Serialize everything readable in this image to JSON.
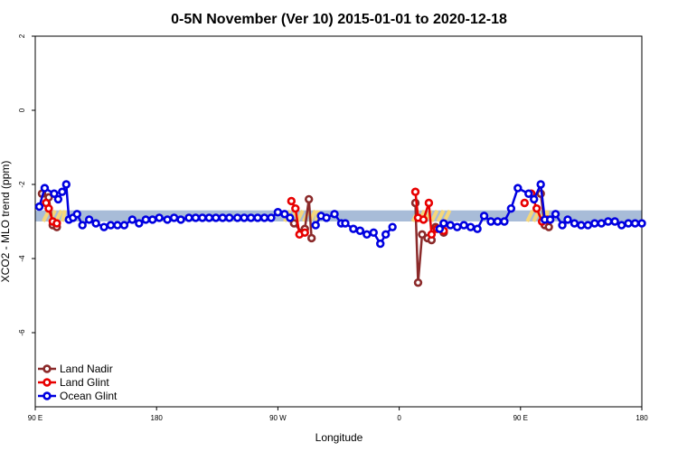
{
  "chart_data": {
    "type": "line",
    "title": "0-5N November (Ver 10)   2015-01-01 to 2020-12-18",
    "xlabel": "Longitude",
    "ylabel": "XCO2 - MLO trend (ppm)",
    "xlim": [
      90,
      540
    ],
    "ylim": [
      -8,
      2
    ],
    "x_ticks": [
      {
        "value": 90,
        "label": "90 E"
      },
      {
        "value": 180,
        "label": "180"
      },
      {
        "value": 270,
        "label": "90 W"
      },
      {
        "value": 360,
        "label": "0"
      },
      {
        "value": 450,
        "label": "90 E"
      },
      {
        "value": 540,
        "label": "180"
      }
    ],
    "y_ticks": [
      {
        "value": 2,
        "label": "2"
      },
      {
        "value": 0,
        "label": "0"
      },
      {
        "value": -2,
        "label": "-2"
      },
      {
        "value": -4,
        "label": "-4"
      },
      {
        "value": -6,
        "label": "-6"
      }
    ],
    "band": {
      "ymin": -3.0,
      "ymax": -2.7,
      "color": "#a8bcd8"
    },
    "yellow_segments": [
      {
        "x0": 96,
        "x1": 112
      },
      {
        "x0": 275,
        "x1": 300
      },
      {
        "x0": 370,
        "x1": 398
      },
      {
        "x0": 455,
        "x1": 470
      }
    ],
    "legend_position": "bottom-left",
    "series": [
      {
        "name": "Land Nadir",
        "color": "#8b2a2a",
        "segments": [
          [
            [
              95,
              -2.25
            ],
            [
              100,
              -2.35
            ],
            [
              103,
              -3.1
            ],
            [
              106,
              -3.15
            ]
          ],
          [
            [
              282,
              -3.05
            ],
            [
              288,
              -3.3
            ],
            [
              290,
              -3.2
            ],
            [
              293,
              -2.4
            ],
            [
              295,
              -3.45
            ]
          ],
          [
            [
              372,
              -2.5
            ],
            [
              374,
              -4.65
            ],
            [
              377,
              -3.35
            ],
            [
              381,
              -3.45
            ],
            [
              384,
              -3.5
            ],
            [
              387,
              -3.15
            ],
            [
              393,
              -3.3
            ]
          ],
          [
            [
              465,
              -2.25
            ],
            [
              468,
              -3.1
            ],
            [
              471,
              -3.15
            ]
          ]
        ]
      },
      {
        "name": "Land Glint",
        "color": "#e80000",
        "segments": [
          [
            [
              98,
              -2.5
            ]
          ],
          [
            [
              100,
              -2.65
            ],
            [
              103,
              -3.0
            ],
            [
              106,
              -3.05
            ]
          ],
          [
            [
              280,
              -2.45
            ],
            [
              283,
              -2.65
            ],
            [
              286,
              -3.35
            ],
            [
              290,
              -3.3
            ]
          ],
          [
            [
              372,
              -2.2
            ],
            [
              374,
              -2.9
            ],
            [
              378,
              -2.95
            ],
            [
              382,
              -2.5
            ],
            [
              384,
              -3.35
            ],
            [
              388,
              -3.2
            ],
            [
              393,
              -3.25
            ]
          ],
          [
            [
              453,
              -2.5
            ]
          ],
          [
            [
              458,
              -2.25
            ],
            [
              462,
              -2.65
            ],
            [
              466,
              -3.0
            ],
            [
              470,
              -2.95
            ]
          ]
        ]
      },
      {
        "name": "Ocean Glint",
        "color": "#0000e0",
        "segments": [
          [
            [
              93,
              -2.6
            ],
            [
              97,
              -2.1
            ],
            [
              104,
              -2.25
            ],
            [
              107,
              -2.4
            ],
            [
              110,
              -2.2
            ],
            [
              113,
              -2.0
            ],
            [
              115,
              -2.95
            ],
            [
              118,
              -2.9
            ],
            [
              121,
              -2.8
            ],
            [
              125,
              -3.1
            ],
            [
              130,
              -2.95
            ],
            [
              135,
              -3.05
            ],
            [
              141,
              -3.15
            ],
            [
              146,
              -3.1
            ],
            [
              151,
              -3.1
            ],
            [
              156,
              -3.1
            ],
            [
              162,
              -2.95
            ],
            [
              167,
              -3.05
            ],
            [
              172,
              -2.95
            ],
            [
              177,
              -2.95
            ],
            [
              182,
              -2.9
            ],
            [
              188,
              -2.95
            ],
            [
              193,
              -2.9
            ],
            [
              198,
              -2.95
            ],
            [
              204,
              -2.9
            ],
            [
              209,
              -2.9
            ],
            [
              214,
              -2.9
            ],
            [
              219,
              -2.9
            ],
            [
              224,
              -2.9
            ],
            [
              229,
              -2.9
            ],
            [
              234,
              -2.9
            ],
            [
              240,
              -2.9
            ],
            [
              245,
              -2.9
            ],
            [
              250,
              -2.9
            ],
            [
              255,
              -2.9
            ],
            [
              260,
              -2.9
            ],
            [
              265,
              -2.9
            ],
            [
              270,
              -2.75
            ],
            [
              275,
              -2.8
            ],
            [
              279,
              -2.9
            ]
          ],
          [
            [
              298,
              -3.1
            ],
            [
              302,
              -2.85
            ],
            [
              306,
              -2.9
            ],
            [
              312,
              -2.8
            ],
            [
              317,
              -3.05
            ],
            [
              320,
              -3.05
            ],
            [
              326,
              -3.2
            ],
            [
              331,
              -3.25
            ],
            [
              336,
              -3.35
            ],
            [
              341,
              -3.3
            ],
            [
              346,
              -3.6
            ],
            [
              350,
              -3.35
            ],
            [
              355,
              -3.15
            ]
          ],
          [
            [
              390,
              -3.2
            ],
            [
              393,
              -3.05
            ],
            [
              398,
              -3.1
            ],
            [
              403,
              -3.15
            ],
            [
              408,
              -3.1
            ],
            [
              413,
              -3.15
            ],
            [
              418,
              -3.2
            ],
            [
              423,
              -2.85
            ],
            [
              428,
              -3.0
            ],
            [
              433,
              -3.0
            ],
            [
              438,
              -3.0
            ],
            [
              443,
              -2.65
            ],
            [
              448,
              -2.1
            ],
            [
              456,
              -2.25
            ],
            [
              460,
              -2.4
            ],
            [
              465,
              -2.0
            ],
            [
              468,
              -2.95
            ],
            [
              472,
              -2.95
            ],
            [
              476,
              -2.8
            ],
            [
              481,
              -3.1
            ],
            [
              485,
              -2.95
            ],
            [
              490,
              -3.05
            ],
            [
              495,
              -3.1
            ],
            [
              500,
              -3.1
            ],
            [
              505,
              -3.05
            ],
            [
              510,
              -3.05
            ],
            [
              515,
              -3.0
            ],
            [
              520,
              -3.0
            ],
            [
              525,
              -3.1
            ],
            [
              530,
              -3.05
            ],
            [
              535,
              -3.05
            ],
            [
              540,
              -3.05
            ]
          ]
        ]
      }
    ]
  }
}
